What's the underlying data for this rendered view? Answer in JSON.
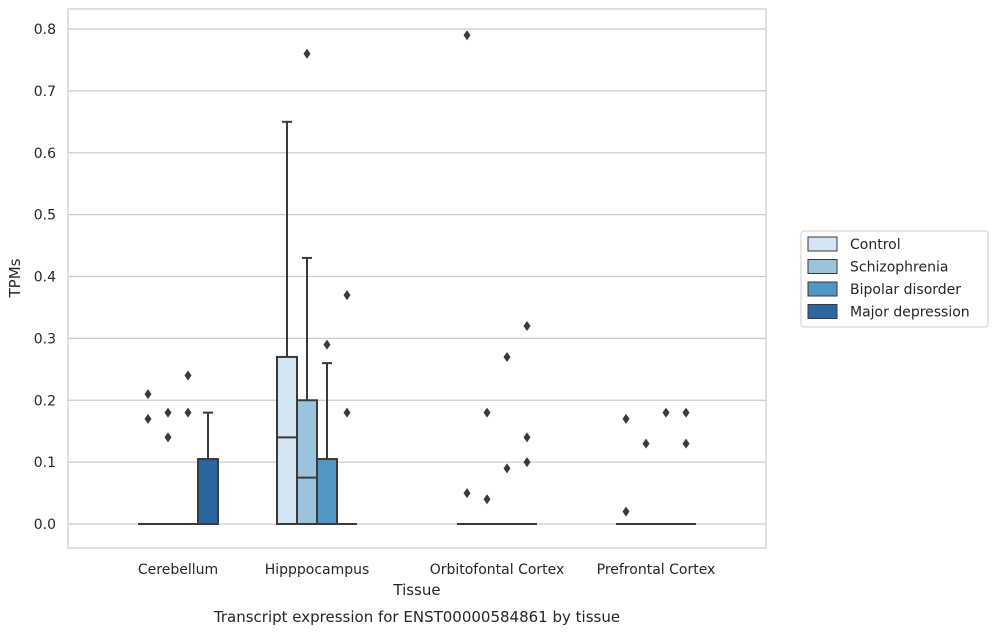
{
  "chart_data": {
    "type": "box",
    "title": "",
    "caption": "Transcript expression for ENST00000584861 by tissue",
    "xlabel": "Tissue",
    "ylabel": "TPMs",
    "ylim": [
      -0.04,
      0.83
    ],
    "yticks": [
      0.0,
      0.1,
      0.2,
      0.3,
      0.4,
      0.5,
      0.6,
      0.7,
      0.8
    ],
    "ytick_labels": [
      "0.0",
      "0.1",
      "0.2",
      "0.3",
      "0.4",
      "0.5",
      "0.6",
      "0.7",
      "0.8"
    ],
    "grid": "horizontal",
    "legend_placement": "right",
    "categories": [
      "Cerebellum",
      "Hipppocampus",
      "Orbitofontal Cortex",
      "Prefrontal Cortex"
    ],
    "series": [
      {
        "name": "Control",
        "color": "#d3e4f2",
        "boxes": [
          {
            "q1": 0,
            "median": 0,
            "q3": 0,
            "whisker_low": 0,
            "whisker_high": 0,
            "outliers": [
              0.21,
              0.17
            ]
          },
          {
            "q1": 0,
            "median": 0.14,
            "q3": 0.27,
            "whisker_low": 0,
            "whisker_high": 0.65,
            "outliers": []
          },
          {
            "q1": 0,
            "median": 0,
            "q3": 0,
            "whisker_low": 0,
            "whisker_high": 0,
            "outliers": [
              0.79,
              0.05
            ]
          },
          {
            "q1": 0,
            "median": 0,
            "q3": 0,
            "whisker_low": 0,
            "whisker_high": 0,
            "outliers": [
              0.17,
              0.02
            ]
          }
        ]
      },
      {
        "name": "Schizophrenia",
        "color": "#9bc4dc",
        "boxes": [
          {
            "q1": 0,
            "median": 0,
            "q3": 0,
            "whisker_low": 0,
            "whisker_high": 0,
            "outliers": [
              0.18,
              0.14
            ]
          },
          {
            "q1": 0,
            "median": 0.075,
            "q3": 0.2,
            "whisker_low": 0,
            "whisker_high": 0.43,
            "outliers": [
              0.76
            ]
          },
          {
            "q1": 0,
            "median": 0,
            "q3": 0,
            "whisker_low": 0,
            "whisker_high": 0,
            "outliers": [
              0.18,
              0.04
            ]
          },
          {
            "q1": 0,
            "median": 0,
            "q3": 0,
            "whisker_low": 0,
            "whisker_high": 0,
            "outliers": [
              0.13
            ]
          }
        ]
      },
      {
        "name": "Bipolar disorder",
        "color": "#5097c6",
        "boxes": [
          {
            "q1": 0,
            "median": 0,
            "q3": 0,
            "whisker_low": 0,
            "whisker_high": 0,
            "outliers": [
              0.24,
              0.18
            ]
          },
          {
            "q1": 0,
            "median": 0,
            "q3": 0.105,
            "whisker_low": 0,
            "whisker_high": 0.26,
            "outliers": [
              0.29
            ]
          },
          {
            "q1": 0,
            "median": 0,
            "q3": 0,
            "whisker_low": 0,
            "whisker_high": 0,
            "outliers": [
              0.27,
              0.09
            ]
          },
          {
            "q1": 0,
            "median": 0,
            "q3": 0,
            "whisker_low": 0,
            "whisker_high": 0,
            "outliers": [
              0.18
            ]
          }
        ]
      },
      {
        "name": "Major depression",
        "color": "#2a66a2",
        "boxes": [
          {
            "q1": 0,
            "median": 0,
            "q3": 0.105,
            "whisker_low": 0,
            "whisker_high": 0.18,
            "outliers": []
          },
          {
            "q1": 0,
            "median": 0,
            "q3": 0,
            "whisker_low": 0,
            "whisker_high": 0,
            "outliers": [
              0.37,
              0.18
            ]
          },
          {
            "q1": 0,
            "median": 0,
            "q3": 0,
            "whisker_low": 0,
            "whisker_high": 0,
            "outliers": [
              0.32,
              0.14,
              0.1
            ]
          },
          {
            "q1": 0,
            "median": 0,
            "q3": 0,
            "whisker_low": 0,
            "whisker_high": 0,
            "outliers": [
              0.18,
              0.13
            ]
          }
        ]
      }
    ]
  },
  "colors": {
    "grid": "#cccccc",
    "frame": "#cccccc",
    "box_edge": "#3a3a3a",
    "outlier": "#3a3a3a"
  }
}
